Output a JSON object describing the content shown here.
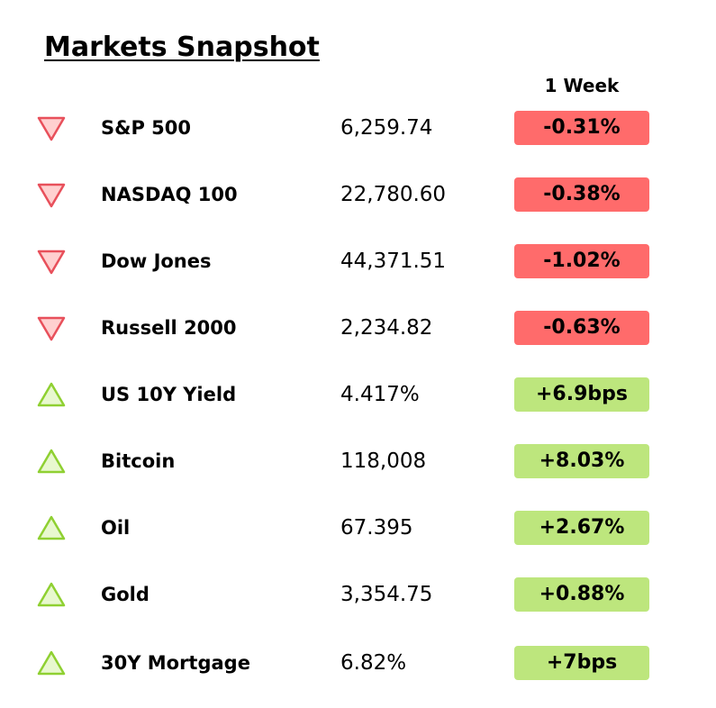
{
  "header": {
    "title": "Markets Snapshot",
    "column_label": "1 Week"
  },
  "colors": {
    "down_fill": "#ff6b6b",
    "down_icon_stroke": "#e8505b",
    "down_icon_fill": "#ffd0d0",
    "up_fill": "#bde67d",
    "up_icon_stroke": "#8fd032",
    "up_icon_fill": "#e8f8cf"
  },
  "markets": [
    {
      "name": "S&P 500",
      "value": "6,259.74",
      "change": "-0.31%",
      "direction": "down",
      "icon": "triangle-down-icon"
    },
    {
      "name": "NASDAQ 100",
      "value": "22,780.60",
      "change": "-0.38%",
      "direction": "down",
      "icon": "triangle-down-icon"
    },
    {
      "name": "Dow Jones",
      "value": "44,371.51",
      "change": "-1.02%",
      "direction": "down",
      "icon": "triangle-down-icon"
    },
    {
      "name": "Russell 2000",
      "value": "2,234.82",
      "change": "-0.63%",
      "direction": "down",
      "icon": "triangle-down-icon"
    },
    {
      "name": "US 10Y Yield",
      "value": "4.417%",
      "change": "+6.9bps",
      "direction": "up",
      "icon": "triangle-up-icon"
    },
    {
      "name": "Bitcoin",
      "value": "118,008",
      "change": "+8.03%",
      "direction": "up",
      "icon": "triangle-up-icon"
    },
    {
      "name": "Oil",
      "value": "67.395",
      "change": "+2.67%",
      "direction": "up",
      "icon": "triangle-up-icon"
    },
    {
      "name": "Gold",
      "value": "3,354.75",
      "change": "+0.88%",
      "direction": "up",
      "icon": "triangle-up-icon"
    },
    {
      "name": "30Y Mortgage",
      "value": "6.82%",
      "change": "+7bps",
      "direction": "up",
      "icon": "triangle-up-icon"
    }
  ]
}
